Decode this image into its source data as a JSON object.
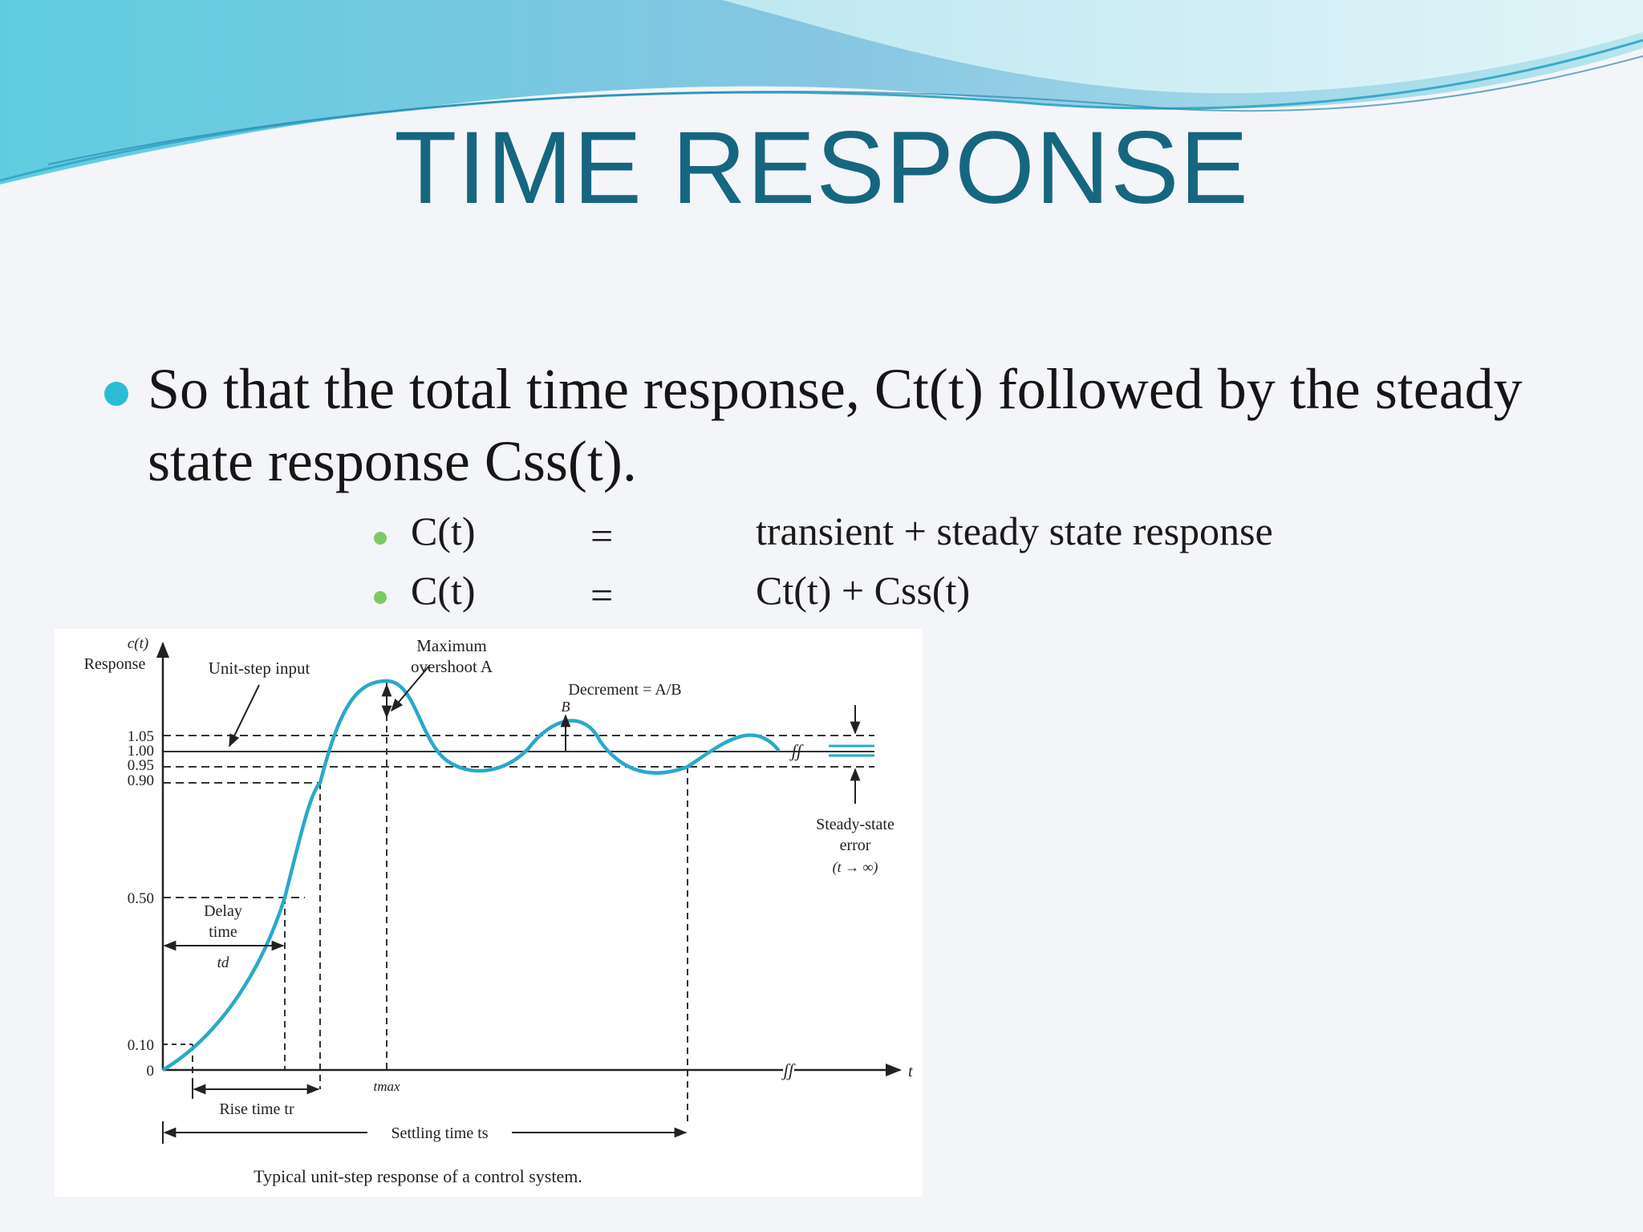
{
  "slide": {
    "title": "TIME RESPONSE",
    "bullet": "So that the total time response, Ct(t) followed by the steady state response Css(t).",
    "sub_bullets": [
      {
        "lhs": "C(t)",
        "eq": "=",
        "rhs": "transient + steady state response"
      },
      {
        "lhs": "C(t)",
        "eq": "=",
        "rhs": "Ct(t) + Css(t)"
      }
    ],
    "colors": {
      "title": "#17667f",
      "bullet_dot": "#2bbcd5",
      "sub_bullet_dot": "#7fc868",
      "curve": "#2aa8cc"
    }
  },
  "figure": {
    "caption": "Typical unit-step response of a control system.",
    "y_axis_label": [
      "c(t)",
      "Response"
    ],
    "x_axis_label": "t",
    "y_ticks": [
      {
        "label": "1.05",
        "value": 1.05
      },
      {
        "label": "1.00",
        "value": 1.0
      },
      {
        "label": "0.95",
        "value": 0.95
      },
      {
        "label": "0.90",
        "value": 0.9
      },
      {
        "label": "0.50",
        "value": 0.5
      },
      {
        "label": "0.10",
        "value": 0.1
      },
      {
        "label": "0",
        "value": 0
      }
    ],
    "annotations": {
      "unit_step_input": "Unit-step input",
      "max_overshoot": [
        "Maximum",
        "overshoot A"
      ],
      "decrement": "Decrement = A/B",
      "b_label": "B",
      "steady_state_error": [
        "Steady-state",
        "error",
        "(t → ∞)"
      ],
      "delay_time": [
        "Delay",
        "time",
        "td"
      ],
      "rise_time": "Rise time tr",
      "settling_time": "Settling time ts",
      "t_max": "tmax",
      "break_mark": "ʃʃ"
    }
  }
}
